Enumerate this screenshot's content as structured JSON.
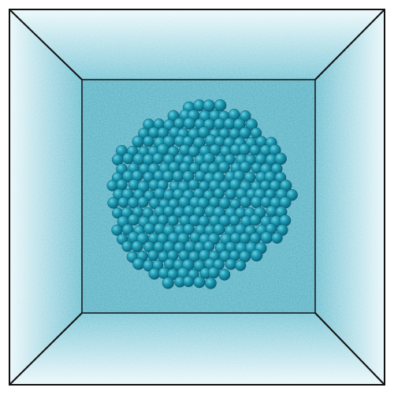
{
  "scene": {
    "subject": "cluster-in-box",
    "colors": {
      "background": "#ffffff",
      "particle": "#1e9bb4",
      "particle_dark": "#0e6f86",
      "particle_light": "#5cc4d6",
      "haze_light": "#e4f5f9",
      "haze_mid": "#8fd0de",
      "back_wall": "#5fb6c8",
      "box_edge": "#111111"
    }
  }
}
